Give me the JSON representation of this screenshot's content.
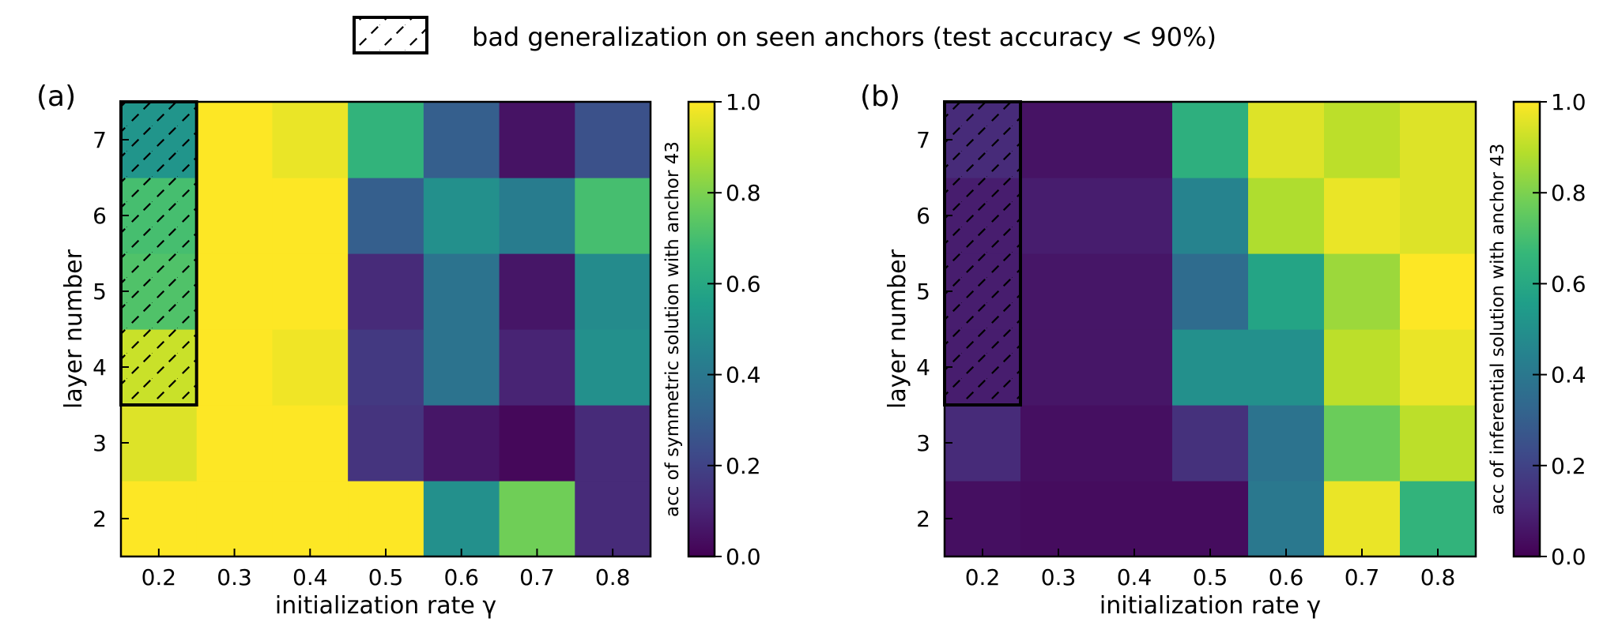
{
  "legend": {
    "label": "bad generalization on seen anchors (test accuracy < 90%)"
  },
  "colormap_stops": [
    "#440154",
    "#482878",
    "#3e4989",
    "#31688e",
    "#26828e",
    "#1f9e89",
    "#35b779",
    "#6ece58",
    "#b5de2b",
    "#fde725"
  ],
  "chart_data": [
    {
      "type": "heatmap",
      "panel_label": "(a)",
      "x": [
        "0.2",
        "0.3",
        "0.4",
        "0.5",
        "0.6",
        "0.7",
        "0.8"
      ],
      "y": [
        "2",
        "3",
        "4",
        "5",
        "6",
        "7"
      ],
      "xlabel": "initialization rate γ",
      "ylabel": "layer number",
      "colorbar_label": "acc of symmetric solution with anchor 43",
      "colorbar_ticks": [
        "0.0",
        "0.2",
        "0.4",
        "0.6",
        "0.8",
        "1.0"
      ],
      "zlim": [
        0,
        1
      ],
      "values": [
        [
          1.0,
          1.0,
          1.0,
          1.0,
          0.5,
          0.78,
          0.12
        ],
        [
          0.95,
          1.0,
          1.0,
          0.15,
          0.06,
          0.02,
          0.12
        ],
        [
          0.92,
          1.0,
          0.98,
          0.17,
          0.38,
          0.1,
          0.5
        ],
        [
          0.72,
          1.0,
          1.0,
          0.12,
          0.38,
          0.06,
          0.48
        ],
        [
          0.7,
          1.0,
          1.0,
          0.3,
          0.5,
          0.42,
          0.7
        ],
        [
          0.52,
          1.0,
          0.97,
          0.65,
          0.3,
          0.05,
          0.25
        ]
      ],
      "hatched_region": {
        "x": [
          "0.2"
        ],
        "y": [
          "4",
          "5",
          "6",
          "7"
        ]
      }
    },
    {
      "type": "heatmap",
      "panel_label": "(b)",
      "x": [
        "0.2",
        "0.3",
        "0.4",
        "0.5",
        "0.6",
        "0.7",
        "0.8"
      ],
      "y": [
        "2",
        "3",
        "4",
        "5",
        "6",
        "7"
      ],
      "xlabel": "initialization rate γ",
      "ylabel": "layer number",
      "colorbar_label": "acc of inferential solution with anchor 43",
      "colorbar_ticks": [
        "0.0",
        "0.2",
        "0.4",
        "0.6",
        "0.8",
        "1.0"
      ],
      "zlim": [
        0,
        1
      ],
      "values": [
        [
          0.04,
          0.03,
          0.03,
          0.03,
          0.4,
          0.97,
          0.65
        ],
        [
          0.12,
          0.04,
          0.04,
          0.14,
          0.38,
          0.77,
          0.9
        ],
        [
          0.08,
          0.06,
          0.06,
          0.5,
          0.5,
          0.9,
          0.97
        ],
        [
          0.08,
          0.06,
          0.06,
          0.35,
          0.58,
          0.85,
          1.0
        ],
        [
          0.08,
          0.08,
          0.08,
          0.45,
          0.88,
          0.97,
          0.95
        ],
        [
          0.12,
          0.05,
          0.05,
          0.63,
          0.95,
          0.9,
          0.95
        ]
      ],
      "hatched_region": {
        "x": [
          "0.2"
        ],
        "y": [
          "4",
          "5",
          "6",
          "7"
        ]
      }
    }
  ]
}
